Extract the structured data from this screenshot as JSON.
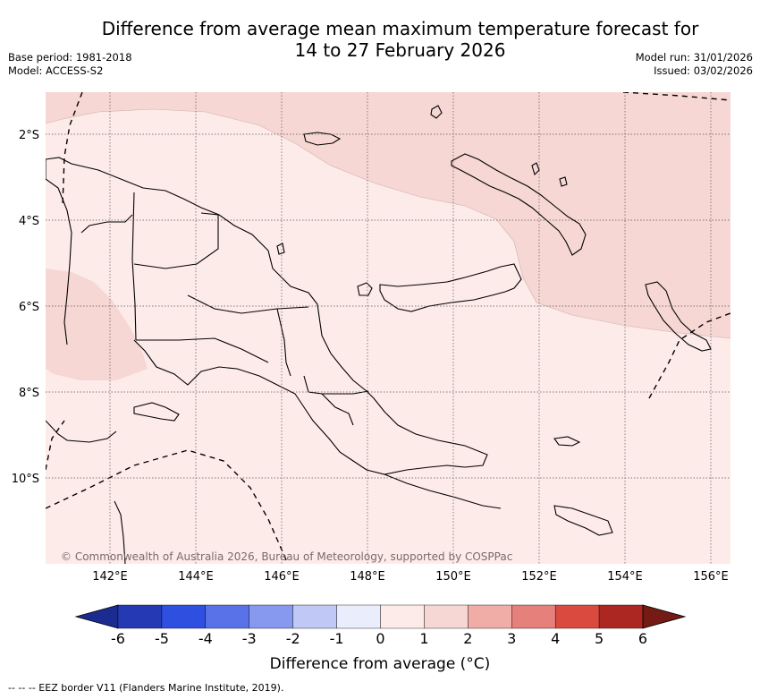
{
  "header": {
    "title_line1": "Difference from average mean maximum temperature forecast for",
    "title_line2": "14 to 27 February 2026",
    "base_period": "Base period: 1981-2018",
    "model": "Model: ACCESS-S2",
    "model_run": "Model run: 31/01/2026",
    "issued": "Issued: 03/02/2026"
  },
  "map": {
    "lat_labels": [
      "2°S",
      "4°S",
      "6°S",
      "8°S",
      "10°S"
    ],
    "lon_labels": [
      "142°E",
      "144°E",
      "146°E",
      "148°E",
      "150°E",
      "152°E",
      "154°E",
      "156°E"
    ],
    "copyright": "© Commonwealth of Australia 2026, Bureau of Meteorology, supported by COSPPac",
    "colors": {
      "light_anomaly": "#fdebe9",
      "moderate_anomaly": "#f6d7d4",
      "coast": "#000000"
    }
  },
  "colorbar": {
    "ticks": [
      "-6",
      "-5",
      "-4",
      "-3",
      "-2",
      "-1",
      "0",
      "1",
      "2",
      "3",
      "4",
      "5",
      "6"
    ],
    "colors": [
      "#1c2b8f",
      "#2539b5",
      "#2e4fe0",
      "#5a72e8",
      "#8699ee",
      "#c0c8f5",
      "#e9edfc",
      "#fdebe9",
      "#f6d7d4",
      "#f0aca6",
      "#e6807a",
      "#db4a3f",
      "#ad2722",
      "#751b16"
    ],
    "label": "Difference from average (°C)"
  },
  "footnote": "-- -- -- EEZ border V11 (Flanders Marine Institute, 2019)."
}
